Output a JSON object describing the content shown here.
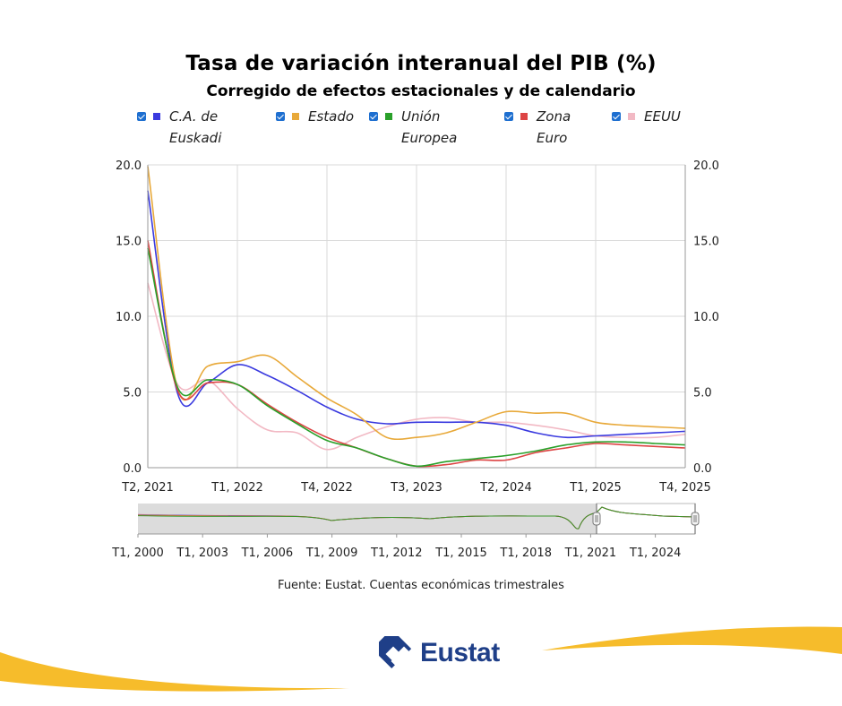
{
  "chart_data": {
    "type": "line",
    "title": "Tasa de variación interanual del PIB (%)",
    "subtitle": "Corregido de efectos estacionales y de calendario",
    "x": [
      "T2, 2021",
      "T3, 2021",
      "T4, 2021",
      "T1, 2022",
      "T2, 2022",
      "T3, 2022",
      "T4, 2022",
      "T1, 2023",
      "T2, 2023",
      "T3, 2023",
      "T4, 2023",
      "T1, 2024",
      "T2, 2024",
      "T3, 2024",
      "T4, 2024",
      "T1, 2025",
      "T2, 2025",
      "T3, 2025",
      "T4, 2025"
    ],
    "x_tick_labels": [
      "T2, 2021",
      "T1, 2022",
      "T4, 2022",
      "T3, 2023",
      "T2, 2024",
      "T1, 2025",
      "T4, 2025"
    ],
    "series": [
      {
        "name": "C.A. de Euskadi",
        "color": "#3a3adf",
        "values": [
          18.3,
          4.9,
          5.6,
          6.8,
          6.1,
          5.1,
          4.0,
          3.2,
          2.9,
          3.0,
          3.0,
          3.0,
          2.8,
          2.3,
          2.0,
          2.1,
          2.2,
          2.3,
          2.4
        ]
      },
      {
        "name": "Estado",
        "color": "#e8a93a",
        "values": [
          19.9,
          5.2,
          6.7,
          7.0,
          7.4,
          6.0,
          4.6,
          3.5,
          2.0,
          2.0,
          2.3,
          3.0,
          3.7,
          3.6,
          3.6,
          3.0,
          2.8,
          2.7,
          2.6
        ]
      },
      {
        "name": "Unión Europea",
        "color": "#2aa02a",
        "values": [
          14.5,
          5.3,
          5.8,
          5.5,
          4.1,
          2.9,
          1.8,
          1.3,
          0.6,
          0.1,
          0.4,
          0.6,
          0.8,
          1.1,
          1.5,
          1.7,
          1.7,
          1.6,
          1.5
        ]
      },
      {
        "name": "Zona Euro",
        "color": "#dd4444",
        "values": [
          15.0,
          5.1,
          5.6,
          5.5,
          4.2,
          3.0,
          2.0,
          1.3,
          0.6,
          0.1,
          0.2,
          0.5,
          0.5,
          1.0,
          1.3,
          1.6,
          1.5,
          1.4,
          1.3
        ]
      },
      {
        "name": "EEUU",
        "color": "#f2b9c4",
        "values": [
          12.2,
          5.5,
          5.8,
          3.9,
          2.5,
          2.3,
          1.2,
          2.0,
          2.7,
          3.2,
          3.3,
          3.0,
          3.0,
          2.8,
          2.5,
          2.1,
          2.0,
          2.0,
          2.2
        ]
      }
    ],
    "legend_labels": [
      [
        "C.A. de",
        "Euskadi"
      ],
      [
        "Estado"
      ],
      [
        "Unión",
        "Europea"
      ],
      [
        "Zona",
        "Euro"
      ],
      [
        "EEUU"
      ]
    ],
    "ylim": [
      0,
      20
    ],
    "yticks": [
      "0.0",
      "5.0",
      "10.0",
      "15.0",
      "20.0"
    ],
    "grid": true,
    "legend_position": "top",
    "navigator": {
      "tick_labels": [
        "T1, 2000",
        "T1, 2003",
        "T1, 2006",
        "T1, 2009",
        "T1, 2012",
        "T1, 2015",
        "T1, 2018",
        "T1, 2021",
        "T1, 2024"
      ],
      "selected_range": [
        "T2, 2021",
        "T4, 2025"
      ]
    }
  },
  "source": "Fuente: Eustat. Cuentas económicas trimestrales",
  "logo_text": "Eustat",
  "colors": {
    "checkbox": "#1e6fd0",
    "logo_blue": "#1f3f88",
    "swoosh": "#f5b820"
  }
}
